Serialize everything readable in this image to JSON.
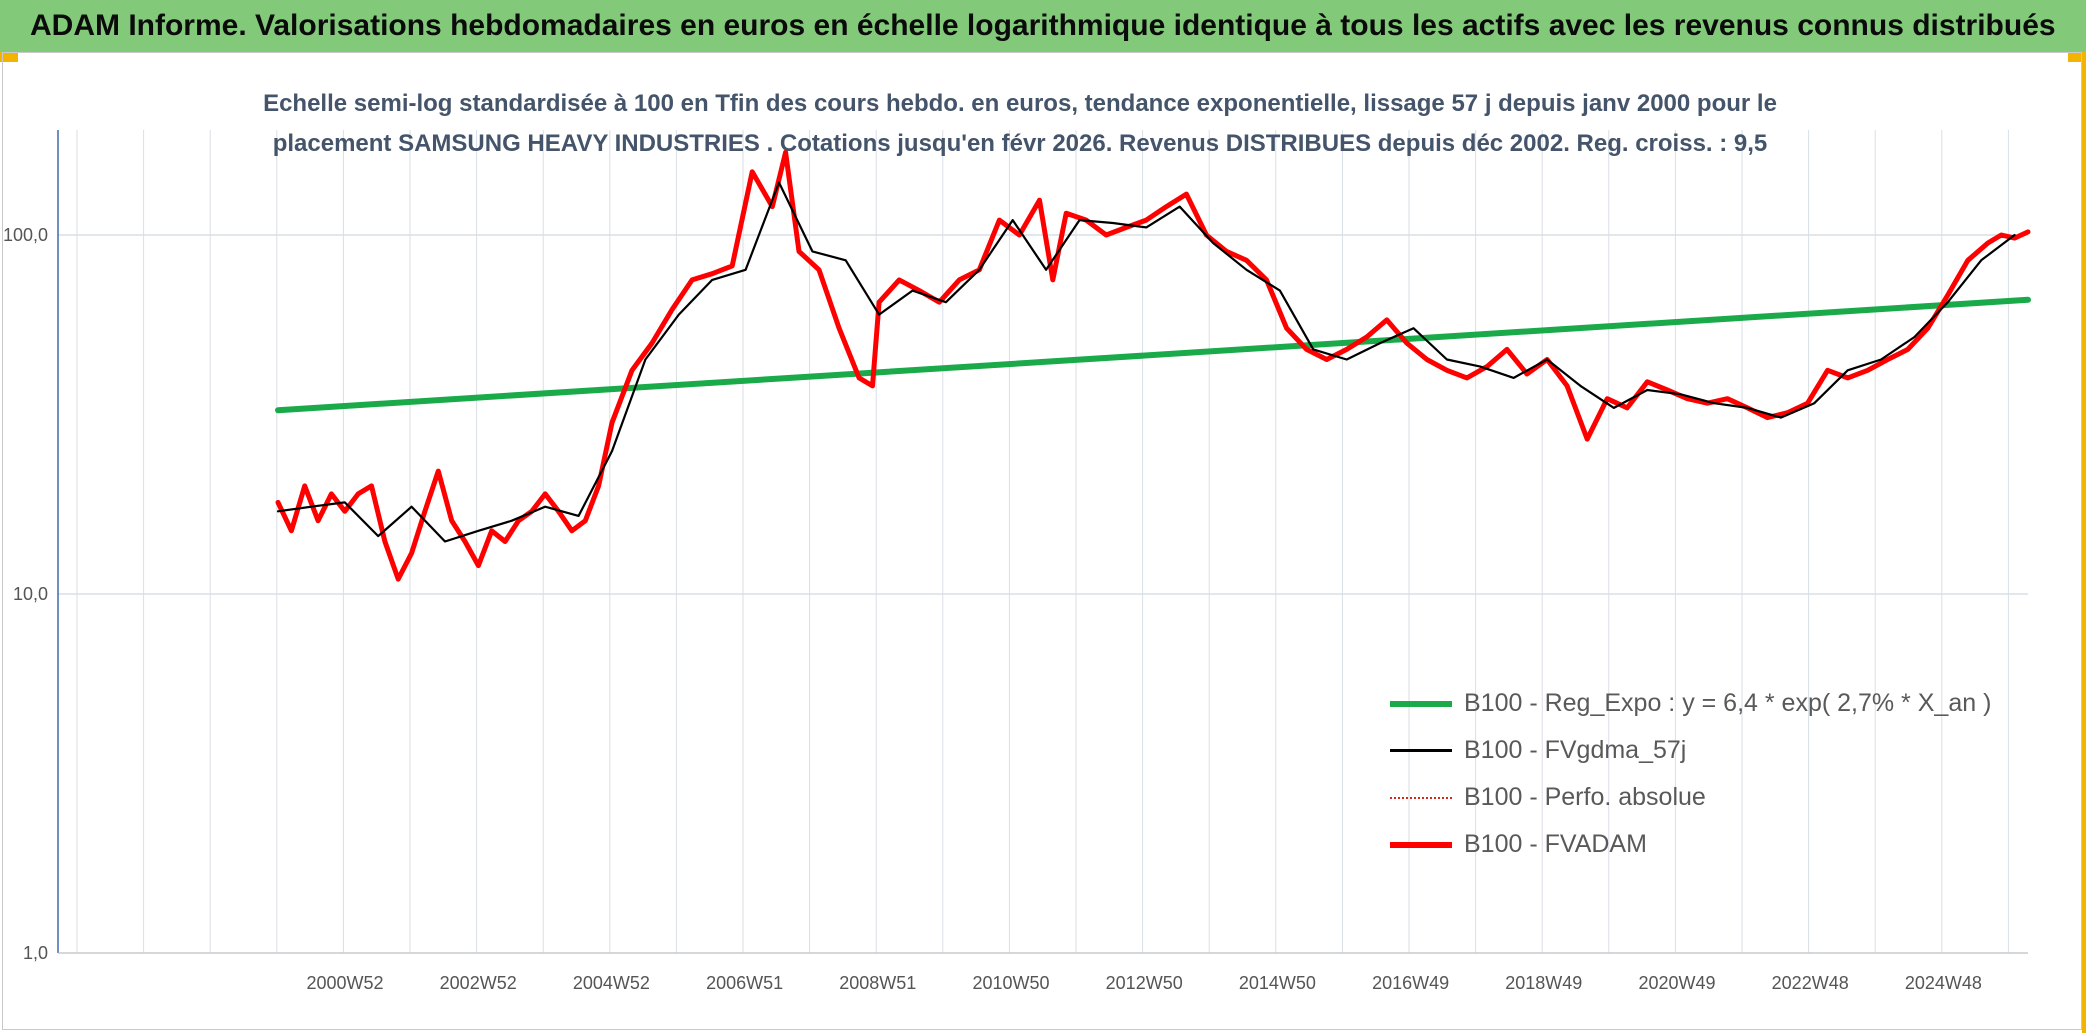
{
  "header": {
    "title": "ADAM Informe. Valorisations hebdomadaires en euros en échelle logarithmique identique à tous les actifs avec les revenus connus distribués"
  },
  "subtitle": {
    "line1": "Echelle semi-log standardisée à 100 en Tfin des cours hebdo. en euros, tendance exponentielle, lissage 57 j depuis janv 2000 pour le",
    "line2": "placement SAMSUNG HEAVY INDUSTRIES . Cotations jusqu'en févr 2026. Revenus DISTRIBUES depuis déc 2002. Reg. croiss. : 9,5"
  },
  "colors": {
    "reg_expo": "#1aaa4a",
    "fvgdma": "#000000",
    "perfo": "#d42a1e",
    "fvadam": "#ff0000",
    "grid": "#d9dfe6",
    "axis": "#3f6bb0"
  },
  "chart_data": {
    "type": "line",
    "y_scale": "log",
    "ylim": [
      1,
      180
    ],
    "y_ticks": [
      "1,0",
      "10,0",
      "100,0"
    ],
    "x_range": [
      2000.0,
      2026.2
    ],
    "x_ticks": [
      "2000W52",
      "2002W52",
      "2004W52",
      "2006W51",
      "2008W51",
      "2010W50",
      "2012W50",
      "2014W50",
      "2016W49",
      "2018W49",
      "2020W49",
      "2022W48",
      "2024W48"
    ],
    "legend_position": "lower-right",
    "series": [
      {
        "name": "B100 - Reg_Expo : y = 6,4 * exp( 2,7% *  X_an )",
        "style": "line-thick",
        "x": [
          2000.0,
          2026.2
        ],
        "y": [
          32.5,
          66
        ]
      },
      {
        "name": "B100 - FVgdma_57j",
        "style": "line-thin",
        "x": [
          2000.0,
          2000.5,
          2001.0,
          2001.5,
          2002.0,
          2002.5,
          2003.0,
          2003.5,
          2004.0,
          2004.5,
          2005.0,
          2005.5,
          2006.0,
          2006.5,
          2007.0,
          2007.5,
          2008.0,
          2008.5,
          2009.0,
          2009.5,
          2010.0,
          2010.5,
          2011.0,
          2011.5,
          2012.0,
          2012.5,
          2013.0,
          2013.5,
          2014.0,
          2014.5,
          2015.0,
          2015.5,
          2016.0,
          2016.5,
          2017.0,
          2017.5,
          2018.0,
          2018.5,
          2019.0,
          2019.5,
          2020.0,
          2020.5,
          2021.0,
          2021.5,
          2022.0,
          2022.5,
          2023.0,
          2023.5,
          2024.0,
          2024.5,
          2025.0,
          2025.5,
          2026.0
        ],
        "y": [
          17,
          17.5,
          18,
          14.5,
          17.5,
          14,
          15,
          16,
          17.5,
          16.5,
          25,
          45,
          60,
          75,
          80,
          140,
          90,
          85,
          60,
          70,
          65,
          80,
          110,
          80,
          110,
          108,
          105,
          120,
          95,
          80,
          70,
          48,
          45,
          50,
          55,
          45,
          43,
          40,
          45,
          38,
          33,
          37,
          36,
          34,
          33,
          31,
          34,
          42,
          45,
          52,
          65,
          85,
          100
        ]
      },
      {
        "name": "B100 - Perfo. absolue",
        "style": "dotted"
      },
      {
        "name": "B100 - FVADAM",
        "style": "line-thick",
        "x": [
          2000.0,
          2000.2,
          2000.4,
          2000.6,
          2000.8,
          2001.0,
          2001.2,
          2001.4,
          2001.6,
          2001.8,
          2002.0,
          2002.2,
          2002.4,
          2002.6,
          2002.8,
          2003.0,
          2003.2,
          2003.4,
          2003.6,
          2003.8,
          2004.0,
          2004.2,
          2004.4,
          2004.6,
          2004.8,
          2005.0,
          2005.3,
          2005.6,
          2005.9,
          2006.2,
          2006.5,
          2006.8,
          2007.1,
          2007.4,
          2007.6,
          2007.8,
          2008.1,
          2008.4,
          2008.7,
          2008.9,
          2009.0,
          2009.3,
          2009.6,
          2009.9,
          2010.2,
          2010.5,
          2010.8,
          2011.1,
          2011.4,
          2011.6,
          2011.8,
          2012.1,
          2012.4,
          2012.7,
          2013.0,
          2013.3,
          2013.6,
          2013.9,
          2014.2,
          2014.5,
          2014.8,
          2015.1,
          2015.4,
          2015.7,
          2016.0,
          2016.3,
          2016.6,
          2016.9,
          2017.2,
          2017.5,
          2017.8,
          2018.1,
          2018.4,
          2018.7,
          2019.0,
          2019.3,
          2019.6,
          2019.9,
          2020.2,
          2020.5,
          2020.8,
          2021.1,
          2021.4,
          2021.7,
          2022.0,
          2022.3,
          2022.6,
          2022.9,
          2023.2,
          2023.5,
          2023.8,
          2024.1,
          2024.4,
          2024.7,
          2025.0,
          2025.3,
          2025.6,
          2025.8,
          2026.0,
          2026.2
        ],
        "y": [
          18,
          15,
          20,
          16,
          19,
          17,
          19,
          20,
          14,
          11,
          13,
          17,
          22,
          16,
          14,
          12,
          15,
          14,
          16,
          17,
          19,
          17,
          15,
          16,
          20,
          30,
          42,
          50,
          62,
          75,
          78,
          82,
          150,
          120,
          170,
          90,
          80,
          55,
          40,
          38,
          65,
          75,
          70,
          65,
          75,
          80,
          110,
          100,
          125,
          75,
          115,
          110,
          100,
          105,
          110,
          120,
          130,
          100,
          90,
          85,
          75,
          55,
          48,
          45,
          48,
          52,
          58,
          50,
          45,
          42,
          40,
          43,
          48,
          41,
          45,
          38,
          27,
          35,
          33,
          39,
          37,
          35,
          34,
          35,
          33,
          31,
          32,
          34,
          42,
          40,
          42,
          45,
          48,
          55,
          68,
          85,
          95,
          100,
          98,
          102
        ]
      }
    ]
  }
}
